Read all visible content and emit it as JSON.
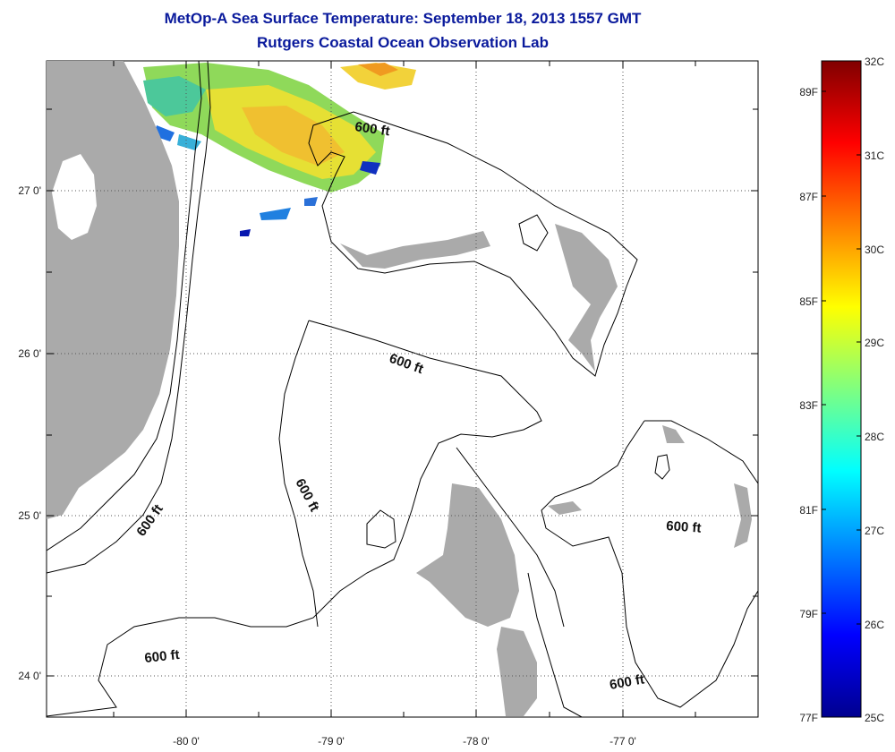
{
  "title": "MetOp-A Sea Surface Temperature:  September 18, 2013 1557 GMT",
  "subtitle": "Rutgers Coastal Ocean Observation Lab",
  "map": {
    "longitude_labels": [
      "-80 0'",
      "-79 0'",
      "-78 0'",
      "-77 0'"
    ],
    "latitude_labels": [
      "27 0'",
      "26 0'",
      "25 0'",
      "24 0'"
    ],
    "isobath_label": "600 ft",
    "colors": {
      "land": "#aaaaaa",
      "ocean": "#ffffff",
      "grid": "#555555"
    }
  },
  "colorbar": {
    "celsius_labels": [
      "32C",
      "31C",
      "30C",
      "29C",
      "28C",
      "27C",
      "26C",
      "25C"
    ],
    "fahrenheit_labels": [
      "89F",
      "87F",
      "85F",
      "83F",
      "81F",
      "79F",
      "77F"
    ],
    "range_c": [
      25,
      32
    ],
    "colormap": "jet"
  }
}
